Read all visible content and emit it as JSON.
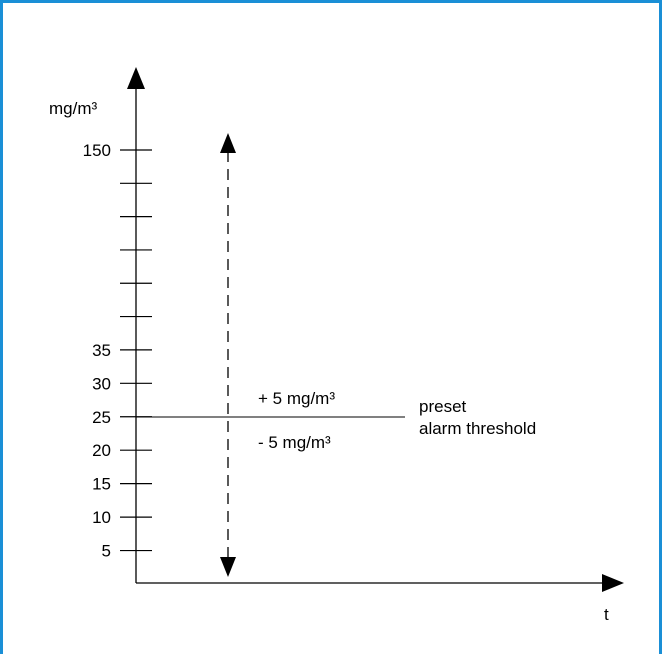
{
  "colors": {
    "frame_border": "#1a8fd6",
    "ink": "#000000"
  },
  "diagram": {
    "y_axis_unit": "mg/m³",
    "x_axis_label": "t",
    "threshold_value": 25,
    "tolerance_plus": "+ 5 mg/m³",
    "tolerance_minus": "- 5 mg/m³",
    "threshold_label_line1": "preset",
    "threshold_label_line2": "alarm threshold"
  },
  "chart_data": {
    "type": "line",
    "ylabel": "mg/m³",
    "xlabel": "t",
    "ticks": [
      {
        "value": 5,
        "label": "5"
      },
      {
        "value": 10,
        "label": "10"
      },
      {
        "value": 15,
        "label": "15"
      },
      {
        "value": 20,
        "label": "20"
      },
      {
        "value": 25,
        "label": "25"
      },
      {
        "value": 30,
        "label": "30"
      },
      {
        "value": 35,
        "label": "35"
      },
      {
        "value": 150,
        "label": "150"
      }
    ],
    "unlabeled_ticks": 5,
    "reference_line": {
      "value": 25
    }
  }
}
